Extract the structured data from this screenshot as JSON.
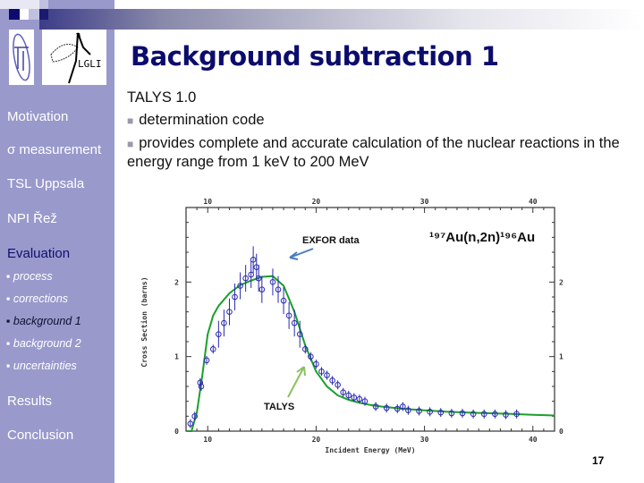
{
  "slide": {
    "title": "Background subtraction 1",
    "page_number": "17",
    "colors": {
      "sidebar_bg": "#9999cc",
      "title": "#0c0c6e",
      "active_section": "#101070",
      "nav_text": "#ffffff",
      "curve": "#1aa02a",
      "data_points": "#2a2ab0",
      "exfor_arrow": "#4a7ac0",
      "talys_arrow": "#8cc060"
    }
  },
  "sidebar": {
    "items": [
      {
        "label": "Motivation",
        "type": "section"
      },
      {
        "label": "σ measurement",
        "type": "section"
      },
      {
        "label": "TSL Uppsala",
        "type": "section"
      },
      {
        "label": "NPI Řež",
        "type": "section"
      },
      {
        "label": "Evaluation",
        "type": "section",
        "active": true
      },
      {
        "label": "▪ process",
        "type": "sub"
      },
      {
        "label": "▪ corrections",
        "type": "sub"
      },
      {
        "label": "▪ background 1",
        "type": "sub",
        "active": true
      },
      {
        "label": "▪ background 2",
        "type": "sub"
      },
      {
        "label": "▪ uncertainties",
        "type": "sub"
      },
      {
        "label": "Results",
        "type": "section"
      },
      {
        "label": "Conclusion",
        "type": "section"
      }
    ]
  },
  "content": {
    "heading": "TALYS 1.0",
    "bullets": [
      "determination code",
      "provides complete and accurate calculation of the nuclear reactions in the energy range from 1 keV to 200 MeV"
    ],
    "bullet_icon": "square-bullet-icon"
  },
  "chart_data": {
    "type": "scatter",
    "title": "¹⁹⁷Au(n,2n)¹⁹⁶Au",
    "xlabel": "Incident Energy (MeV)",
    "ylabel": "Cross Section (barns)",
    "xlim": [
      8,
      42
    ],
    "ylim": [
      0,
      3
    ],
    "xticks": [
      10,
      20,
      30,
      40
    ],
    "yticks": [
      0,
      1,
      2
    ],
    "grid": false,
    "annotations": [
      "EXFOR data",
      "TALYS",
      "¹⁹⁷Au(n,2n)¹⁹⁶Au"
    ],
    "series": [
      {
        "name": "TALYS",
        "style": "line",
        "x": [
          8.1,
          8.5,
          9.0,
          9.5,
          10.0,
          10.5,
          11,
          12,
          13,
          14,
          15,
          16,
          17,
          18,
          19,
          20,
          21,
          22,
          23,
          24,
          25,
          26,
          28,
          30,
          32,
          34,
          36,
          38,
          40,
          42
        ],
        "y": [
          0.0,
          0.0,
          0.25,
          0.75,
          1.3,
          1.55,
          1.68,
          1.85,
          1.96,
          2.02,
          2.07,
          2.08,
          1.95,
          1.6,
          1.15,
          0.8,
          0.6,
          0.48,
          0.42,
          0.38,
          0.35,
          0.33,
          0.3,
          0.28,
          0.26,
          0.25,
          0.24,
          0.23,
          0.22,
          0.21
        ]
      },
      {
        "name": "EXFOR data",
        "style": "markers with error bars",
        "x": [
          8.4,
          8.8,
          9.3,
          9.4,
          9.9,
          10.5,
          11.0,
          11.5,
          12.0,
          12.5,
          13.0,
          13.5,
          14.0,
          14.2,
          14.5,
          14.7,
          15.0,
          16.0,
          16.5,
          17.0,
          17.5,
          18.0,
          18.5,
          19.0,
          19.5,
          20.0,
          20.5,
          21.0,
          21.5,
          22.0,
          22.5,
          23.0,
          23.5,
          24.0,
          24.5,
          25.5,
          26.5,
          27.5,
          28.0,
          28.5,
          29.5,
          30.5,
          31.5,
          32.5,
          33.5,
          34.5,
          35.5,
          36.5,
          37.5,
          38.5
        ],
        "y": [
          0.1,
          0.2,
          0.65,
          0.6,
          0.95,
          1.1,
          1.3,
          1.45,
          1.6,
          1.8,
          1.95,
          2.05,
          2.1,
          2.3,
          2.2,
          2.05,
          1.9,
          2.0,
          1.9,
          1.75,
          1.55,
          1.45,
          1.3,
          1.1,
          1.0,
          0.9,
          0.8,
          0.75,
          0.68,
          0.62,
          0.52,
          0.48,
          0.45,
          0.43,
          0.4,
          0.33,
          0.31,
          0.3,
          0.33,
          0.28,
          0.27,
          0.26,
          0.25,
          0.24,
          0.24,
          0.23,
          0.23,
          0.23,
          0.22,
          0.23
        ]
      }
    ]
  }
}
